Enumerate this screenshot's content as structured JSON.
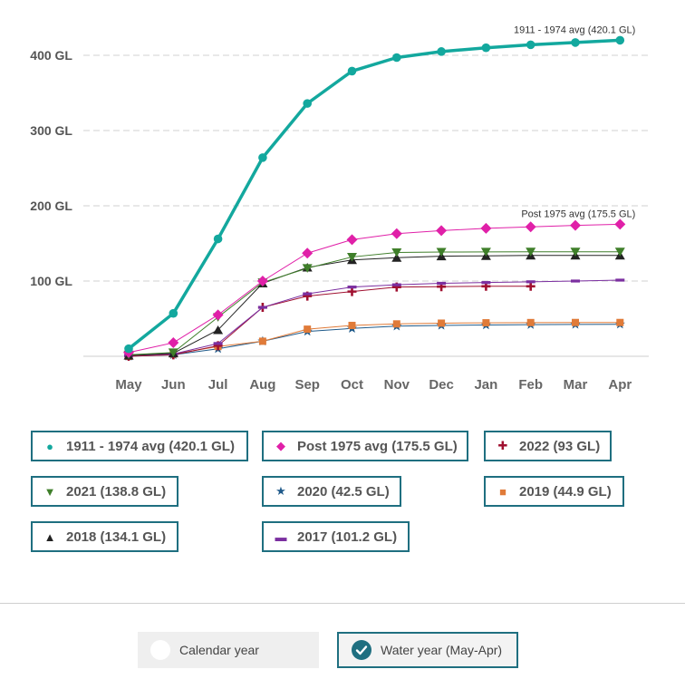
{
  "chart_data": {
    "type": "line",
    "categories": [
      "May",
      "Jun",
      "Jul",
      "Aug",
      "Sep",
      "Oct",
      "Nov",
      "Dec",
      "Jan",
      "Feb",
      "Mar",
      "Apr"
    ],
    "y_tick_labels": [
      "100 GL",
      "200 GL",
      "300 GL",
      "400 GL"
    ],
    "y_ticks": [
      100,
      200,
      300,
      400
    ],
    "ylim": [
      0,
      440
    ],
    "grid": true,
    "series": [
      {
        "name": "1911 - 1974 avg (420.1 GL)",
        "short": "1911 - 1974 avg",
        "color": "#13a89e",
        "marker": "circle",
        "width": 3.5,
        "values": [
          10,
          57,
          156,
          264,
          336,
          379,
          397,
          405,
          410,
          414,
          417,
          420
        ]
      },
      {
        "name": "Post 1975 avg (175.5 GL)",
        "short": "Post 1975 avg",
        "color": "#e020a8",
        "marker": "diamond",
        "width": 1,
        "values": [
          5,
          18,
          55,
          100,
          137,
          155,
          163,
          167,
          170,
          172,
          174,
          175.5
        ]
      },
      {
        "name": "2021 (138.8 GL)",
        "short": "2021",
        "color": "#3f7f2a",
        "marker": "triangle-down",
        "width": 1,
        "values": [
          2,
          5,
          52,
          98,
          117,
          132,
          138,
          138.5,
          138.7,
          138.8,
          138.8,
          138.8
        ]
      },
      {
        "name": "2018 (134.1 GL)",
        "short": "2018",
        "color": "#222222",
        "marker": "triangle-up",
        "width": 1,
        "values": [
          1,
          4,
          35,
          97,
          118,
          128,
          131,
          133,
          133.5,
          134,
          134,
          134.1
        ]
      },
      {
        "name": "2017 (101.2 GL)",
        "short": "2017",
        "color": "#7b2fa0",
        "marker": "dash",
        "width": 1,
        "values": [
          1,
          3,
          17,
          65,
          83,
          92,
          95,
          97,
          98,
          99,
          100,
          101.2
        ]
      },
      {
        "name": "2022 (93 GL)",
        "short": "2022",
        "color": "#a01030",
        "marker": "plus",
        "width": 1,
        "values": [
          0,
          2,
          14,
          65,
          80,
          86,
          92,
          92.5,
          93,
          93,
          null,
          null
        ]
      },
      {
        "name": "2019 (44.9 GL)",
        "short": "2019",
        "color": "#e07b39",
        "marker": "square",
        "width": 1,
        "values": [
          0,
          3,
          13,
          20,
          36,
          41,
          43,
          44,
          44.5,
          44.8,
          44.9,
          44.9
        ]
      },
      {
        "name": "2020 (42.5 GL)",
        "short": "2020",
        "color": "#1f5a8a",
        "marker": "star",
        "width": 1,
        "values": [
          0,
          2,
          10,
          20,
          33,
          37,
          40,
          41,
          41.5,
          42,
          42.3,
          42.5
        ]
      }
    ],
    "annotations": [
      {
        "text": "1911 - 1974 avg (420.1 GL)",
        "series": 0
      },
      {
        "text": "Post 1975 avg (175.5 GL)",
        "series": 1
      }
    ]
  },
  "legend": {
    "items": [
      {
        "label": "1911 - 1974 avg (420.1 GL)",
        "symbol": "●",
        "color": "#13a89e"
      },
      {
        "label": "Post 1975 avg (175.5 GL)",
        "symbol": "◆",
        "color": "#e020a8"
      },
      {
        "label": "2022 (93 GL)",
        "symbol": "✚",
        "color": "#a01030"
      },
      {
        "label": "2021 (138.8 GL)",
        "symbol": "▼",
        "color": "#3f7f2a"
      },
      {
        "label": "2020 (42.5 GL)",
        "symbol": "★",
        "color": "#1f5a8a"
      },
      {
        "label": "2019 (44.9 GL)",
        "symbol": "■",
        "color": "#e07b39"
      },
      {
        "label": "2018 (134.1 GL)",
        "symbol": "▲",
        "color": "#222222"
      },
      {
        "label": "2017 (101.2 GL)",
        "symbol": "▬",
        "color": "#7b2fa0"
      }
    ]
  },
  "toggles": {
    "calendar_label": "Calendar year",
    "water_label": "Water year (May-Apr)",
    "selected": "water"
  }
}
